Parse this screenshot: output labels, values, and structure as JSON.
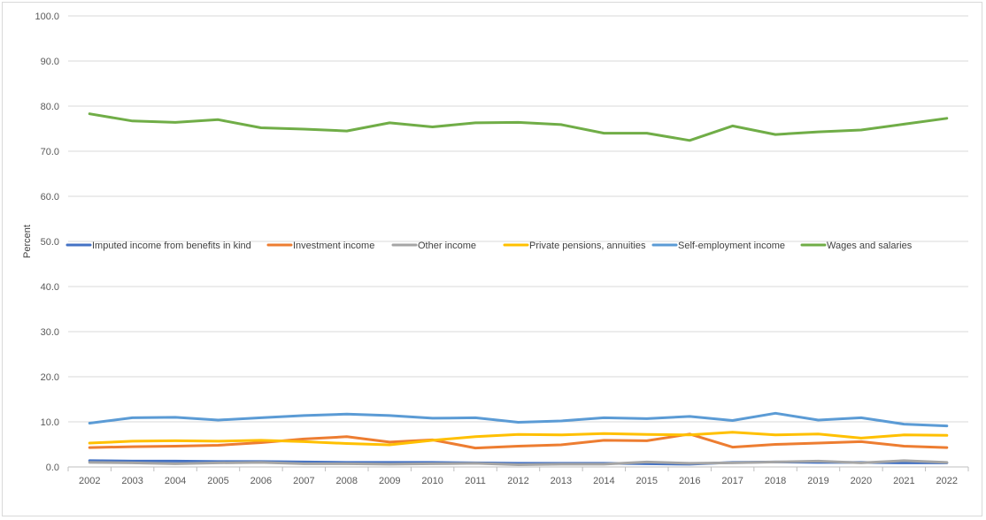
{
  "chart_data": {
    "type": "line",
    "title": "",
    "xlabel": "",
    "ylabel": "Percent",
    "ylim": [
      0,
      100
    ],
    "yticks": [
      "0.0",
      "10.0",
      "20.0",
      "30.0",
      "40.0",
      "50.0",
      "60.0",
      "70.0",
      "80.0",
      "90.0",
      "100.0"
    ],
    "grid": "horizontal",
    "legend_position": "middle",
    "categories": [
      "2002",
      "2003",
      "2004",
      "2005",
      "2006",
      "2007",
      "2008",
      "2009",
      "2010",
      "2011",
      "2012",
      "2013",
      "2014",
      "2015",
      "2016",
      "2017",
      "2018",
      "2019",
      "2020",
      "2021",
      "2022"
    ],
    "series": [
      {
        "name": "Imputed income from benefits in kind",
        "color": "#4472c4",
        "values": [
          1.4,
          1.3,
          1.3,
          1.2,
          1.2,
          1.1,
          1.0,
          1.0,
          1.0,
          0.9,
          0.8,
          0.8,
          0.8,
          0.7,
          0.6,
          1.0,
          1.1,
          1.0,
          1.0,
          0.9,
          0.9
        ]
      },
      {
        "name": "Investment income",
        "color": "#ed7d31",
        "values": [
          4.3,
          4.5,
          4.6,
          4.8,
          5.4,
          6.2,
          6.7,
          5.5,
          6.0,
          4.2,
          4.6,
          4.9,
          5.9,
          5.8,
          7.3,
          4.4,
          5.0,
          5.3,
          5.6,
          4.6,
          4.3
        ]
      },
      {
        "name": "Other income",
        "color": "#a5a5a5",
        "values": [
          1.0,
          0.9,
          0.7,
          0.9,
          1.0,
          0.7,
          0.7,
          0.6,
          0.7,
          0.8,
          0.5,
          0.6,
          0.6,
          1.1,
          0.8,
          0.9,
          1.1,
          1.3,
          0.9,
          1.4,
          1.0
        ]
      },
      {
        "name": "Private pensions, annuities",
        "color": "#ffc000",
        "values": [
          5.3,
          5.7,
          5.8,
          5.7,
          5.9,
          5.6,
          5.2,
          4.9,
          5.9,
          6.7,
          7.2,
          7.1,
          7.4,
          7.2,
          7.1,
          7.7,
          7.1,
          7.3,
          6.4,
          7.1,
          7.0
        ]
      },
      {
        "name": "Self-employment income",
        "color": "#5b9bd5",
        "values": [
          9.7,
          10.9,
          11.0,
          10.4,
          10.9,
          11.4,
          11.7,
          11.4,
          10.8,
          10.9,
          9.9,
          10.2,
          10.9,
          10.7,
          11.2,
          10.3,
          11.9,
          10.4,
          10.9,
          9.5,
          9.1
        ]
      },
      {
        "name": "Wages and salaries",
        "color": "#70ad47",
        "values": [
          78.3,
          76.7,
          76.4,
          77.0,
          75.2,
          74.9,
          74.5,
          76.3,
          75.4,
          76.3,
          76.4,
          75.9,
          74.0,
          74.0,
          72.4,
          75.6,
          73.7,
          74.3,
          74.7,
          76.0,
          77.3
        ]
      }
    ]
  }
}
